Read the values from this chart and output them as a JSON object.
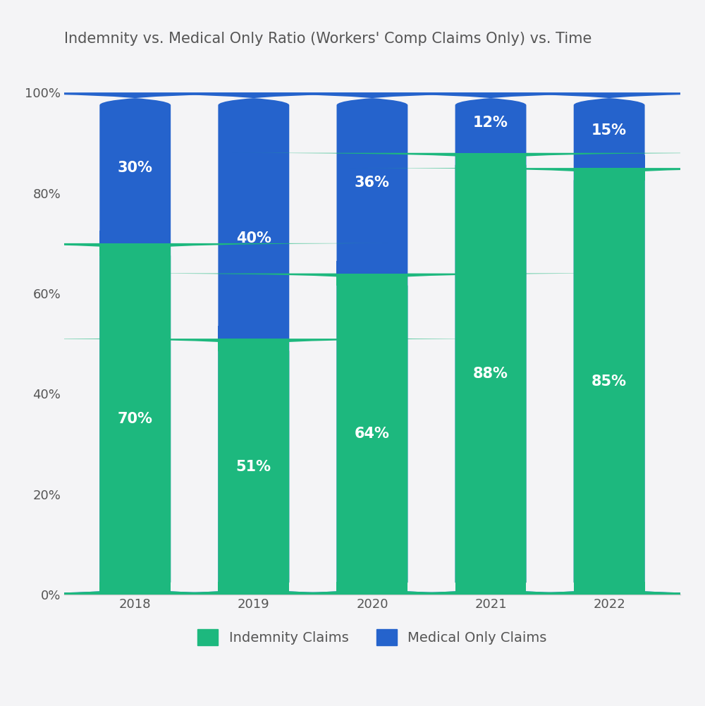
{
  "title": "Indemnity vs. Medical Only Ratio (Workers' Comp Claims Only) vs. Time",
  "years": [
    "2018",
    "2019",
    "2020",
    "2021",
    "2022"
  ],
  "indemnity_values": [
    70,
    51,
    64,
    88,
    85
  ],
  "medical_values": [
    30,
    40,
    36,
    12,
    15
  ],
  "indemnity_color": "#1DB87E",
  "medical_color": "#2563CC",
  "bar_width": 0.6,
  "ylim": [
    0,
    105
  ],
  "yticks": [
    0,
    20,
    40,
    60,
    80,
    100
  ],
  "yticklabels": [
    "0%",
    "20%",
    "40%",
    "60%",
    "80%",
    "100%"
  ],
  "title_fontsize": 15,
  "tick_fontsize": 13,
  "legend_fontsize": 14,
  "background_color": "#f4f4f6",
  "axes_background_color": "#f4f4f6",
  "text_color": "#555555",
  "bar_label_color": "#ffffff",
  "bar_label_fontsize": 15,
  "legend_labels": [
    "Indemnity Claims",
    "Medical Only Claims"
  ],
  "rounding_size": 2.5,
  "figure_bg": "#f4f4f6"
}
